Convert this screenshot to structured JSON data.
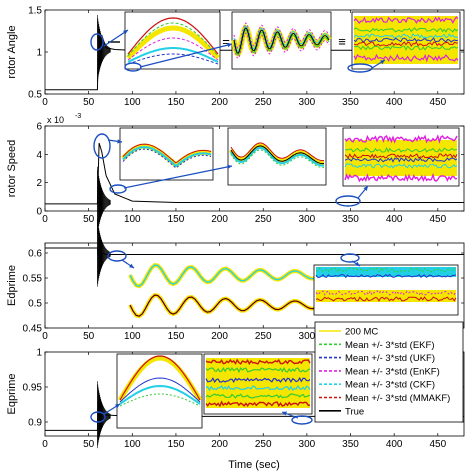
{
  "figure": {
    "xlabel": "Time (sec)",
    "colors": {
      "mc": "#f5e600",
      "ekf": "#33cc33",
      "ukf": "#2233cc",
      "enkf": "#e020e0",
      "ckf": "#22d0e6",
      "mmakf": "#cc1111",
      "true": "#000000",
      "arrow": "#1a4fc0"
    }
  },
  "chart_data": [
    {
      "type": "line",
      "ylabel": "rotor Angle",
      "xlim": [
        0,
        480
      ],
      "ylim": [
        0.5,
        1.5
      ],
      "x_ticks": [
        "0",
        "50",
        "100",
        "150",
        "200",
        "250",
        "300",
        "350",
        "400",
        "450"
      ],
      "y_ticks": [
        "0.5",
        "1",
        "1.5"
      ],
      "exponent_label": "",
      "series": [
        {
          "name": "True",
          "x": [
            0,
            60,
            61,
            65,
            70,
            80,
            100,
            480
          ],
          "y": [
            0.55,
            0.55,
            0.9,
            1.2,
            1.05,
            1.03,
            1.02,
            1.02
          ]
        }
      ],
      "annotations": [
        "=",
        "≡"
      ]
    },
    {
      "type": "line",
      "ylabel": "rotor Speed",
      "xlim": [
        0,
        480
      ],
      "ylim": [
        0,
        0.006
      ],
      "x_ticks": [
        "0",
        "50",
        "100",
        "150",
        "200",
        "250",
        "300",
        "350",
        "400",
        "450"
      ],
      "y_ticks": [
        "0",
        "2",
        "4",
        "6"
      ],
      "exponent_label": "x 10",
      "exponent_power": "-3",
      "series": [
        {
          "name": "True",
          "x": [
            0,
            60,
            62,
            65,
            70,
            80,
            100,
            150,
            480
          ],
          "y": [
            0.0005,
            0.0005,
            0.0048,
            0.0042,
            0.0025,
            0.0012,
            0.0007,
            0.0006,
            0.0006
          ]
        }
      ]
    },
    {
      "type": "line",
      "ylabel": "Edprime",
      "xlim": [
        0,
        480
      ],
      "ylim": [
        0.45,
        0.62
      ],
      "x_ticks": [
        "0",
        "50",
        "100",
        "150",
        "200",
        "250",
        "300",
        "350",
        "400",
        "450"
      ],
      "y_ticks": [
        "0.45",
        "0.5",
        "0.55",
        "0.6"
      ],
      "exponent_label": "",
      "series": [
        {
          "name": "True",
          "x": [
            0,
            60,
            61,
            65,
            70,
            100,
            480
          ],
          "y": [
            0.61,
            0.61,
            0.595,
            0.6,
            0.597,
            0.597,
            0.597
          ]
        }
      ]
    },
    {
      "type": "line",
      "ylabel": "Eqprime",
      "xlim": [
        0,
        480
      ],
      "ylim": [
        0.88,
        1.0
      ],
      "x_ticks": [
        "0",
        "50",
        "100",
        "150",
        "200",
        "250",
        "300",
        "350",
        "400",
        "450"
      ],
      "y_ticks": [
        "0.9",
        "0.95",
        "1"
      ],
      "exponent_label": "",
      "series": [
        {
          "name": "True",
          "x": [
            0,
            60,
            61,
            65,
            70,
            100,
            480
          ],
          "y": [
            0.888,
            0.888,
            0.93,
            0.9,
            0.91,
            0.908,
            0.908
          ]
        }
      ],
      "legend": {
        "placement": "bottom-right",
        "entries": [
          {
            "label": "200 MC",
            "color": "#f5e600",
            "style": "solid"
          },
          {
            "label": "Mean +/- 3*std (EKF)",
            "color": "#33cc33",
            "style": "dashed"
          },
          {
            "label": "Mean +/- 3*std (UKF)",
            "color": "#2233cc",
            "style": "dashed"
          },
          {
            "label": "Mean +/- 3*std (EnKF)",
            "color": "#e020e0",
            "style": "dashed"
          },
          {
            "label": "Mean +/- 3*std (CKF)",
            "color": "#22d0e6",
            "style": "dashed"
          },
          {
            "label": "Mean +/- 3*std (MMAKF)",
            "color": "#cc1111",
            "style": "dashed"
          },
          {
            "label": "True",
            "color": "#000000",
            "style": "solid"
          }
        ]
      }
    }
  ]
}
